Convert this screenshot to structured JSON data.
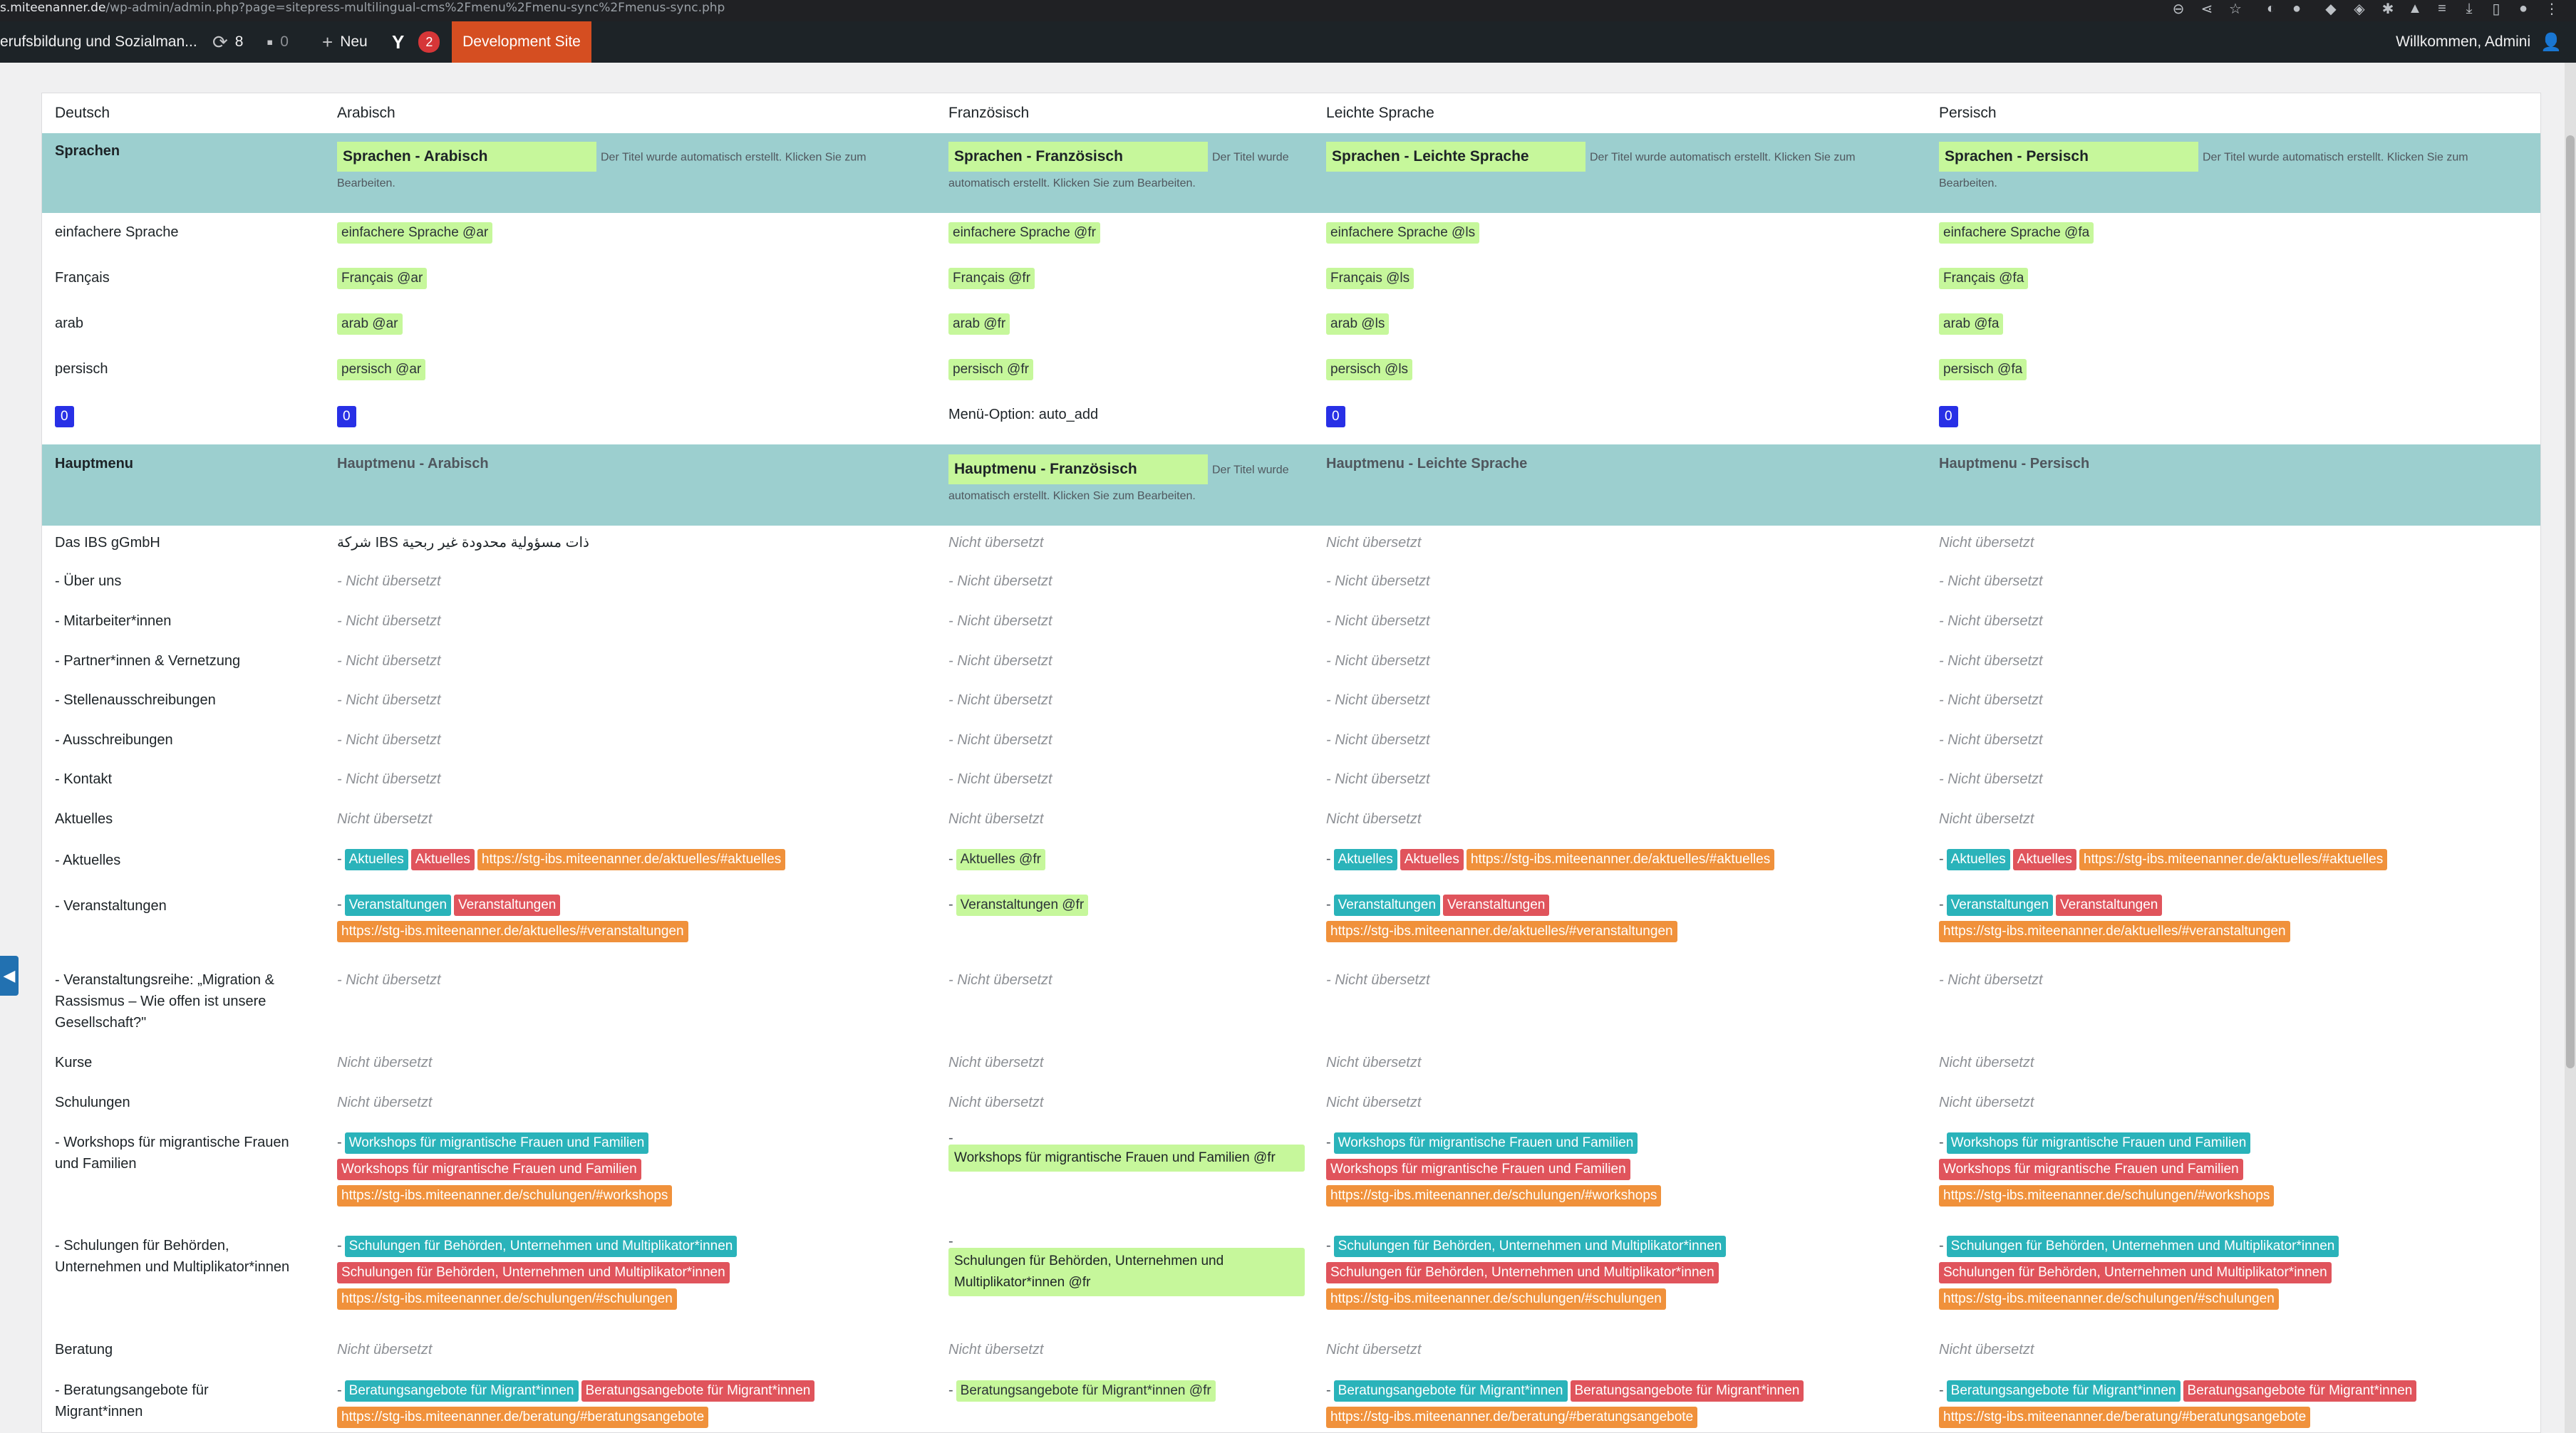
{
  "browser": {
    "url_prefix": "s.miteenanner.de",
    "url_rest": "/wp-admin/admin.php?page=sitepress-multilingual-cms%2Fmenu%2Fmenu-sync%2Fmenus-sync.php"
  },
  "adminbar": {
    "site_name": "erufsbildung und Sozialman...",
    "updates_count": "8",
    "comments_count": "0",
    "new_label": "Neu",
    "yoast_badge": "2",
    "dev_site_label": "Development Site",
    "welcome": "Willkommen, Admini"
  },
  "columns": [
    "Deutsch",
    "Arabisch",
    "Französisch",
    "Leichte Sprache",
    "Persisch"
  ],
  "sprachen": {
    "label": "Sprachen",
    "ar_title": "Sprachen - Arabisch",
    "fr_title": "Sprachen - Französisch",
    "ls_title": "Sprachen - Leichte Sprache",
    "fa_title": "Sprachen - Persisch",
    "note_1": "Der Titel wurde automatisch erstellt. Klicken Sie zum",
    "note_2": "Bearbeiten.",
    "fr_note_1": "Der Titel wurde",
    "fr_note_2": "automatisch erstellt. Klicken Sie zum Bearbeiten.",
    "rows": [
      {
        "de": "einfachere Sprache",
        "ar": "einfachere Sprache @ar",
        "fr": "einfachere Sprache @fr",
        "ls": "einfachere Sprache @ls",
        "fa": "einfachere Sprache @fa"
      },
      {
        "de": "Français",
        "ar": "Français @ar",
        "fr": "Français @fr",
        "ls": "Français @ls",
        "fa": "Français @fa"
      },
      {
        "de": "arab",
        "ar": "arab @ar",
        "fr": "arab @fr",
        "ls": "arab @ls",
        "fa": "arab @fa"
      },
      {
        "de": "persisch",
        "ar": "persisch @ar",
        "fr": "persisch @fr",
        "ls": "persisch @ls",
        "fa": "persisch @fa"
      }
    ],
    "option_value": "0",
    "fr_option": "Menü-Option: auto_add"
  },
  "hauptmenu": {
    "label": "Hauptmenu",
    "ar_title": "Hauptmenu - Arabisch",
    "fr_title": "Hauptmenu - Französisch",
    "ls_title": "Hauptmenu - Leichte Sprache",
    "fa_title": "Hauptmenu - Persisch",
    "fr_note_1": "Der Titel wurde",
    "fr_note_2": "automatisch erstellt. Klicken Sie zum Bearbeiten."
  },
  "nt": "Nicht übersetzt",
  "dash_nt": "- Nicht übersetzt",
  "items": {
    "ibs": "Das IBS gGmbH",
    "ibs_ar": "شركة IBS ذات مسؤولية محدودة غير ربحية",
    "ueber": "- Über uns",
    "mitarbeiter": "- Mitarbeiter*innen",
    "partner": "- Partner*innen & Vernetzung",
    "stellen": "- Stellenausschreibungen",
    "ausschreibungen": "- Ausschreibungen",
    "kontakt": "- Kontakt",
    "aktuelles_top": "Aktuelles",
    "aktuelles": "- Aktuelles",
    "veranstaltungen": "- Veranstaltungen",
    "reihe_1": "- Veranstaltungsreihe: „Migration &",
    "reihe_2": "Rassismus – Wie offen ist unsere",
    "reihe_3": "Gesellschaft?\"",
    "kurse": "Kurse",
    "schulungen": "Schulungen",
    "workshops_1": "- Workshops für migrantische Frauen",
    "workshops_2": "und Familien",
    "behoerden_1": "- Schulungen für Behörden,",
    "behoerden_2": "Unternehmen und Multiplikator*innen",
    "beratung": "Beratung",
    "angebote_1": "- Beratungsangebote für",
    "angebote_2": "Migrant*innen"
  },
  "pills": {
    "dash": "-",
    "aktuelles": "Aktuelles",
    "aktuelles_url": "https://stg-ibs.miteenanner.de/aktuelles/#aktuelles",
    "aktuelles_fr": "Aktuelles @fr",
    "veranstaltungen": "Veranstaltungen",
    "veranstaltungen_url": "https://stg-ibs.miteenanner.de/aktuelles/#veranstaltungen",
    "veranstaltungen_fr": "Veranstaltungen @fr",
    "workshops": "Workshops für migrantische Frauen und Familien",
    "workshops_url": "https://stg-ibs.miteenanner.de/schulungen/#workshops",
    "workshops_fr": "Workshops für migrantische Frauen und Familien @fr",
    "behoerden": "Schulungen für Behörden, Unternehmen und Multiplikator*innen",
    "behoerden_url": "https://stg-ibs.miteenanner.de/schulungen/#schulungen",
    "behoerden_fr": "Schulungen für Behörden, Unternehmen und Multiplikator*innen @fr",
    "angebote": "Beratungsangebote für Migrant*innen",
    "angebote_url": "https://stg-ibs.miteenanner.de/beratung/#beratungsangebote",
    "angebote_fr": "Beratungsangebote für Migrant*innen @fr"
  },
  "colors": {
    "group_bg": "#9ccfcf",
    "new_title": "#c6f79b",
    "teal": "#2ab3ba",
    "red": "#e0545c",
    "orange": "#f0913b",
    "blue": "#2830e6",
    "dev_site": "#d54e21"
  }
}
